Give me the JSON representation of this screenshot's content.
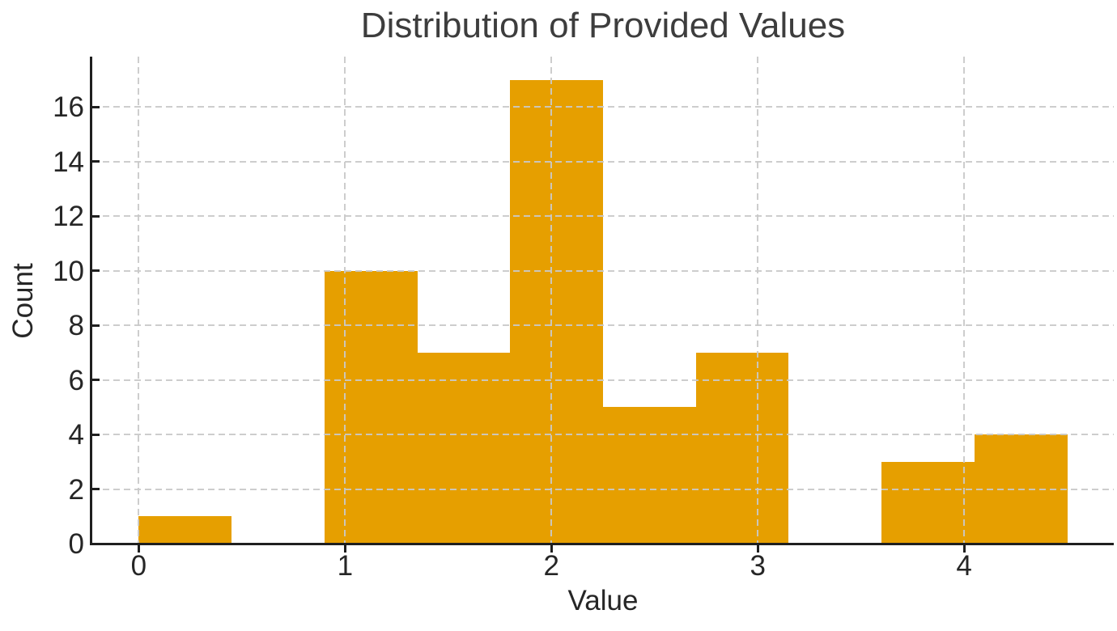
{
  "title": "Distribution of Provided Values",
  "chart_data": {
    "type": "histogram",
    "title": "Distribution of Provided Values",
    "xlabel": "Value",
    "ylabel": "Count",
    "bin_edges": [
      0,
      0.45,
      0.9,
      1.35,
      1.8,
      2.25,
      2.7,
      3.15,
      3.6,
      4.05,
      4.5
    ],
    "counts": [
      1,
      0,
      10,
      7,
      17,
      5,
      7,
      0,
      3,
      4
    ],
    "total_count": 54,
    "xticks": [
      0,
      1,
      2,
      3,
      4
    ],
    "yticks": [
      0,
      2,
      4,
      6,
      8,
      10,
      12,
      14,
      16
    ],
    "xlim": [
      -0.225,
      4.725
    ],
    "ylim": [
      0,
      17.85
    ],
    "grid": {
      "style": "dashed",
      "axes": "both",
      "drawn_over_bars": true
    },
    "legend": "none",
    "spines": [
      "left",
      "bottom"
    ],
    "colors": {
      "bar": "#E69F00",
      "grid": "#C9C9C9",
      "spine": "#1F1F1F",
      "title_text": "#3D3D3D",
      "tick_text": "#262626"
    }
  }
}
